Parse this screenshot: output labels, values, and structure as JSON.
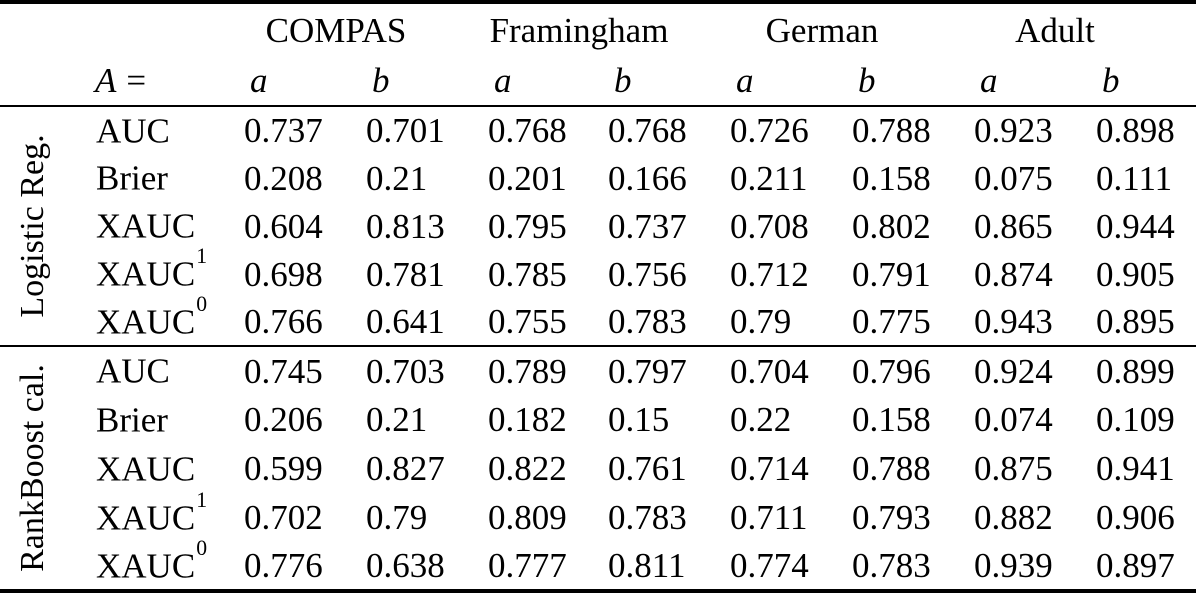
{
  "table": {
    "corner": {
      "variable": "A",
      "equals": "="
    },
    "datasets": [
      "COMPAS",
      "Framingham",
      "German",
      "Adult"
    ],
    "subcolumns": [
      "a",
      "b"
    ],
    "groups": [
      {
        "label": "Logistic Reg.",
        "rows": [
          {
            "metric": "AUC",
            "sup": "",
            "values": [
              "0.737",
              "0.701",
              "0.768",
              "0.768",
              "0.726",
              "0.788",
              "0.923",
              "0.898"
            ]
          },
          {
            "metric": "Brier",
            "sup": "",
            "values": [
              "0.208",
              "0.21",
              "0.201",
              "0.166",
              "0.211",
              "0.158",
              "0.075",
              "0.111"
            ]
          },
          {
            "metric": "XAUC",
            "sup": "",
            "values": [
              "0.604",
              "0.813",
              "0.795",
              "0.737",
              "0.708",
              "0.802",
              "0.865",
              "0.944"
            ]
          },
          {
            "metric": "XAUC",
            "sup": "1",
            "values": [
              "0.698",
              "0.781",
              "0.785",
              "0.756",
              "0.712",
              "0.791",
              "0.874",
              "0.905"
            ]
          },
          {
            "metric": "XAUC",
            "sup": "0",
            "values": [
              "0.766",
              "0.641",
              "0.755",
              "0.783",
              "0.79",
              "0.775",
              "0.943",
              "0.895"
            ]
          }
        ]
      },
      {
        "label": "RankBoost cal.",
        "rows": [
          {
            "metric": "AUC",
            "sup": "",
            "values": [
              "0.745",
              "0.703",
              "0.789",
              "0.797",
              "0.704",
              "0.796",
              "0.924",
              "0.899"
            ]
          },
          {
            "metric": "Brier",
            "sup": "",
            "values": [
              "0.206",
              "0.21",
              "0.182",
              "0.15",
              "0.22",
              "0.158",
              "0.074",
              "0.109"
            ]
          },
          {
            "metric": "XAUC",
            "sup": "",
            "values": [
              "0.599",
              "0.827",
              "0.822",
              "0.761",
              "0.714",
              "0.788",
              "0.875",
              "0.941"
            ]
          },
          {
            "metric": "XAUC",
            "sup": "1",
            "values": [
              "0.702",
              "0.79",
              "0.809",
              "0.783",
              "0.711",
              "0.793",
              "0.882",
              "0.906"
            ]
          },
          {
            "metric": "XAUC",
            "sup": "0",
            "values": [
              "0.776",
              "0.638",
              "0.777",
              "0.811",
              "0.774",
              "0.783",
              "0.939",
              "0.897"
            ]
          }
        ]
      }
    ]
  },
  "colors": {
    "background": "#ffffff",
    "text": "#000000",
    "rule": "#000000"
  }
}
